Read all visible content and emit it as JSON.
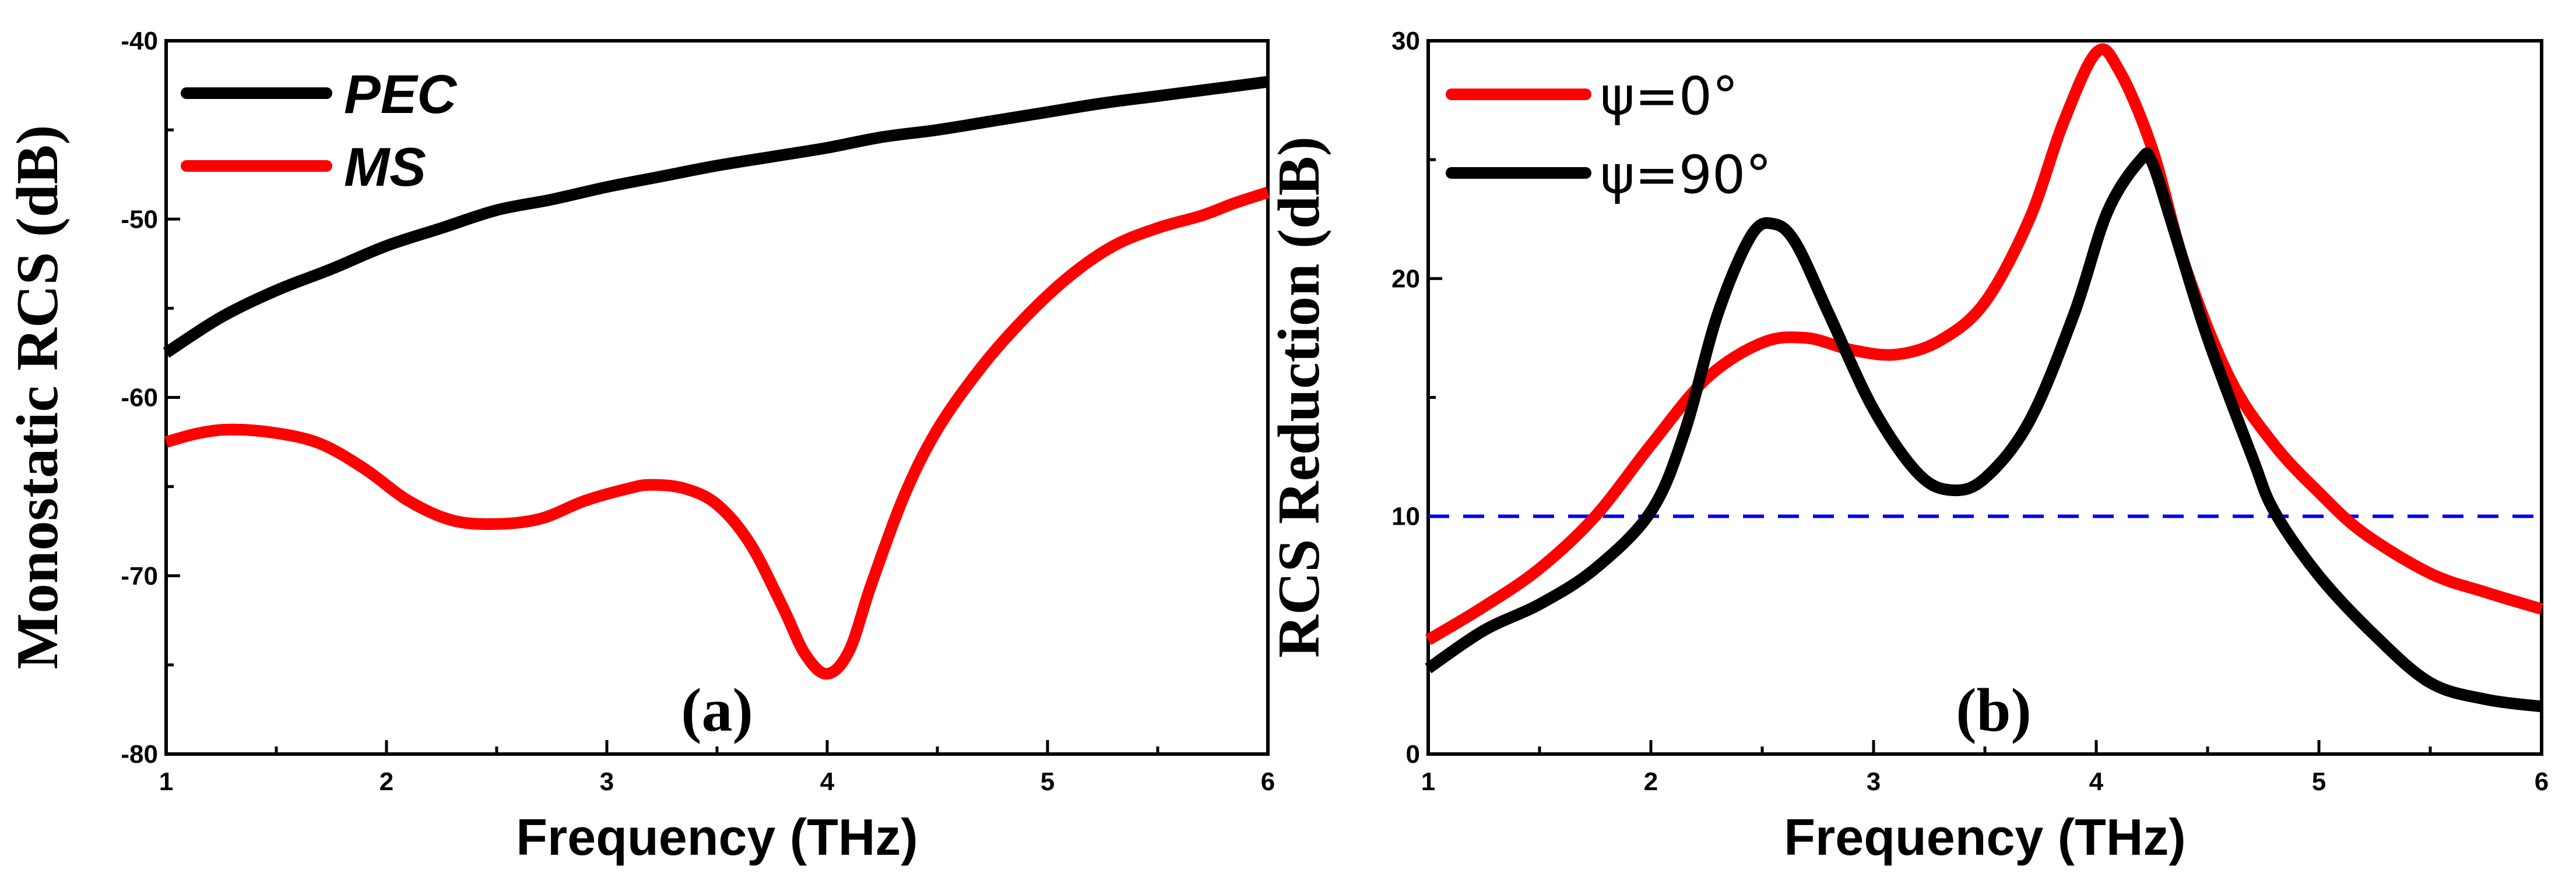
{
  "chart_data": [
    {
      "type": "line",
      "panel_label": "(a)",
      "xlabel": "Frequency (THz)",
      "ylabel": "Monostatic RCS (dB)",
      "xlim": [
        1,
        6
      ],
      "ylim": [
        -80,
        -40
      ],
      "xticks": [
        1,
        2,
        3,
        4,
        5,
        6
      ],
      "yticks": [
        -80,
        -70,
        -60,
        -50,
        -40
      ],
      "legend_position": "top-left",
      "series": [
        {
          "name": "PEC",
          "color": "#000000",
          "x": [
            1.0,
            1.25,
            1.5,
            1.75,
            2.0,
            2.25,
            2.5,
            2.75,
            3.0,
            3.25,
            3.5,
            3.75,
            4.0,
            4.25,
            4.5,
            4.75,
            5.0,
            5.25,
            5.5,
            5.75,
            6.0
          ],
          "y": [
            -57.5,
            -55.5,
            -54.0,
            -52.8,
            -51.5,
            -50.5,
            -49.5,
            -48.9,
            -48.2,
            -47.6,
            -47.0,
            -46.5,
            -46.0,
            -45.4,
            -45.0,
            -44.5,
            -44.0,
            -43.5,
            -43.1,
            -42.7,
            -42.3
          ]
        },
        {
          "name": "MS",
          "color": "#ff0000",
          "x": [
            1.0,
            1.15,
            1.3,
            1.5,
            1.7,
            1.9,
            2.1,
            2.3,
            2.5,
            2.7,
            2.9,
            3.1,
            3.2,
            3.35,
            3.5,
            3.65,
            3.8,
            3.9,
            4.0,
            4.1,
            4.2,
            4.35,
            4.5,
            4.7,
            4.9,
            5.1,
            5.3,
            5.5,
            5.7,
            5.85,
            6.0
          ],
          "y": [
            -62.5,
            -62.0,
            -61.8,
            -62.0,
            -62.6,
            -64.0,
            -65.8,
            -66.9,
            -67.1,
            -66.8,
            -65.8,
            -65.1,
            -64.9,
            -65.1,
            -66.0,
            -68.2,
            -71.8,
            -74.4,
            -75.5,
            -74.2,
            -70.5,
            -65.5,
            -61.8,
            -58.3,
            -55.5,
            -53.2,
            -51.5,
            -50.5,
            -49.8,
            -49.1,
            -48.5
          ]
        }
      ]
    },
    {
      "type": "line",
      "panel_label": "(b)",
      "xlabel": "Frequency (THz)",
      "ylabel": "RCS Reduction (dB)",
      "xlim": [
        1,
        6
      ],
      "ylim": [
        0,
        30
      ],
      "xticks": [
        1,
        2,
        3,
        4,
        5,
        6
      ],
      "yticks": [
        0,
        10,
        20,
        30
      ],
      "legend_position": "top-left",
      "reference_line": {
        "y": 10,
        "color": "#0000ee",
        "style": "dashed"
      },
      "series": [
        {
          "name": "ψ=0°",
          "color": "#ff0000",
          "x": [
            1.0,
            1.25,
            1.5,
            1.75,
            2.0,
            2.25,
            2.5,
            2.7,
            2.9,
            3.1,
            3.3,
            3.5,
            3.7,
            3.85,
            4.0,
            4.1,
            4.25,
            4.4,
            4.6,
            4.8,
            5.0,
            5.2,
            5.5,
            5.75,
            6.0
          ],
          "y": [
            4.8,
            6.2,
            7.8,
            10.0,
            13.0,
            15.8,
            17.3,
            17.5,
            17.0,
            16.8,
            17.4,
            19.0,
            22.5,
            26.5,
            29.5,
            28.8,
            25.5,
            20.5,
            15.8,
            13.0,
            11.0,
            9.3,
            7.6,
            6.8,
            6.1
          ]
        },
        {
          "name": "ψ=90°",
          "color": "#000000",
          "x": [
            1.0,
            1.25,
            1.5,
            1.75,
            2.0,
            2.15,
            2.3,
            2.45,
            2.55,
            2.65,
            2.8,
            3.0,
            3.2,
            3.35,
            3.5,
            3.7,
            3.9,
            4.05,
            4.2,
            4.25,
            4.35,
            4.5,
            4.7,
            4.8,
            5.0,
            5.25,
            5.5,
            5.75,
            6.0
          ],
          "y": [
            3.6,
            5.2,
            6.3,
            7.8,
            10.2,
            13.5,
            18.5,
            21.8,
            22.3,
            21.5,
            18.5,
            14.5,
            11.8,
            11.1,
            11.6,
            14.0,
            18.5,
            22.8,
            25.0,
            24.9,
            22.0,
            17.5,
            12.5,
            10.2,
            7.5,
            5.0,
            3.0,
            2.3,
            2.0
          ]
        }
      ]
    }
  ]
}
